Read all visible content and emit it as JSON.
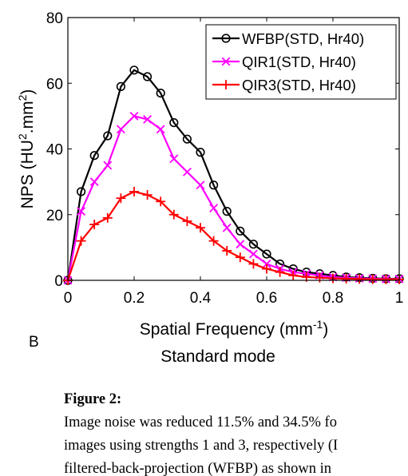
{
  "chart_data": {
    "type": "line",
    "xlabel": "Spatial Frequency (mm",
    "xlabel_sup": "-1",
    "xlabel_tail": ")",
    "ylabel": "NPS (HU",
    "ylabel_sup": "2",
    "ylabel_tail": ".mm",
    "ylabel_sup2": "2",
    "ylabel_end": ")",
    "subtitle": "Standard mode",
    "xlim": [
      0,
      1
    ],
    "ylim": [
      0,
      80
    ],
    "xticks": [
      "0",
      "0.2",
      "0.4",
      "0.6",
      "0.8",
      "1"
    ],
    "yticks": [
      "0",
      "20",
      "40",
      "60",
      "80"
    ],
    "legend_position": "top-right",
    "x": [
      0,
      0.04,
      0.08,
      0.12,
      0.16,
      0.2,
      0.24,
      0.28,
      0.32,
      0.36,
      0.4,
      0.44,
      0.48,
      0.52,
      0.56,
      0.6,
      0.64,
      0.68,
      0.72,
      0.76,
      0.8,
      0.84,
      0.88,
      0.92,
      0.96,
      1.0
    ],
    "series": [
      {
        "name": "WFBP(STD, Hr40)",
        "color": "#000000",
        "marker": "circle",
        "values": [
          0,
          27,
          38,
          44,
          59,
          64,
          62,
          57,
          48,
          43,
          39,
          29,
          21,
          15,
          11,
          8,
          5,
          3.5,
          2.5,
          2,
          1.5,
          1,
          0.8,
          0.6,
          0.5,
          0.5
        ]
      },
      {
        "name": "QIR1(STD, Hr40)",
        "color": "#ff00ff",
        "marker": "x",
        "values": [
          0,
          21,
          30,
          35,
          46,
          50,
          49,
          46,
          37,
          33,
          29,
          22,
          16,
          11,
          8,
          5,
          3.5,
          2.5,
          2,
          1.5,
          1,
          0.8,
          0.6,
          0.5,
          0.4,
          0.4
        ]
      },
      {
        "name": "QIR3(STD, Hr40)",
        "color": "#ff0000",
        "marker": "plus",
        "values": [
          0,
          12,
          17,
          19,
          25,
          27,
          26,
          24,
          20,
          18,
          16,
          12,
          9,
          7,
          5,
          3.5,
          2.5,
          1.5,
          1,
          0.8,
          0.6,
          0.5,
          0.4,
          0.3,
          0.3,
          0.3
        ]
      }
    ]
  },
  "panel_letter": "B",
  "caption": {
    "title": "Figure 2:",
    "lines": [
      "Image noise was reduced 11.5% and 34.5% fo",
      "images using strengths 1 and 3, respectively (I",
      "filtered-back-projection (WFBP) as shown in"
    ]
  }
}
